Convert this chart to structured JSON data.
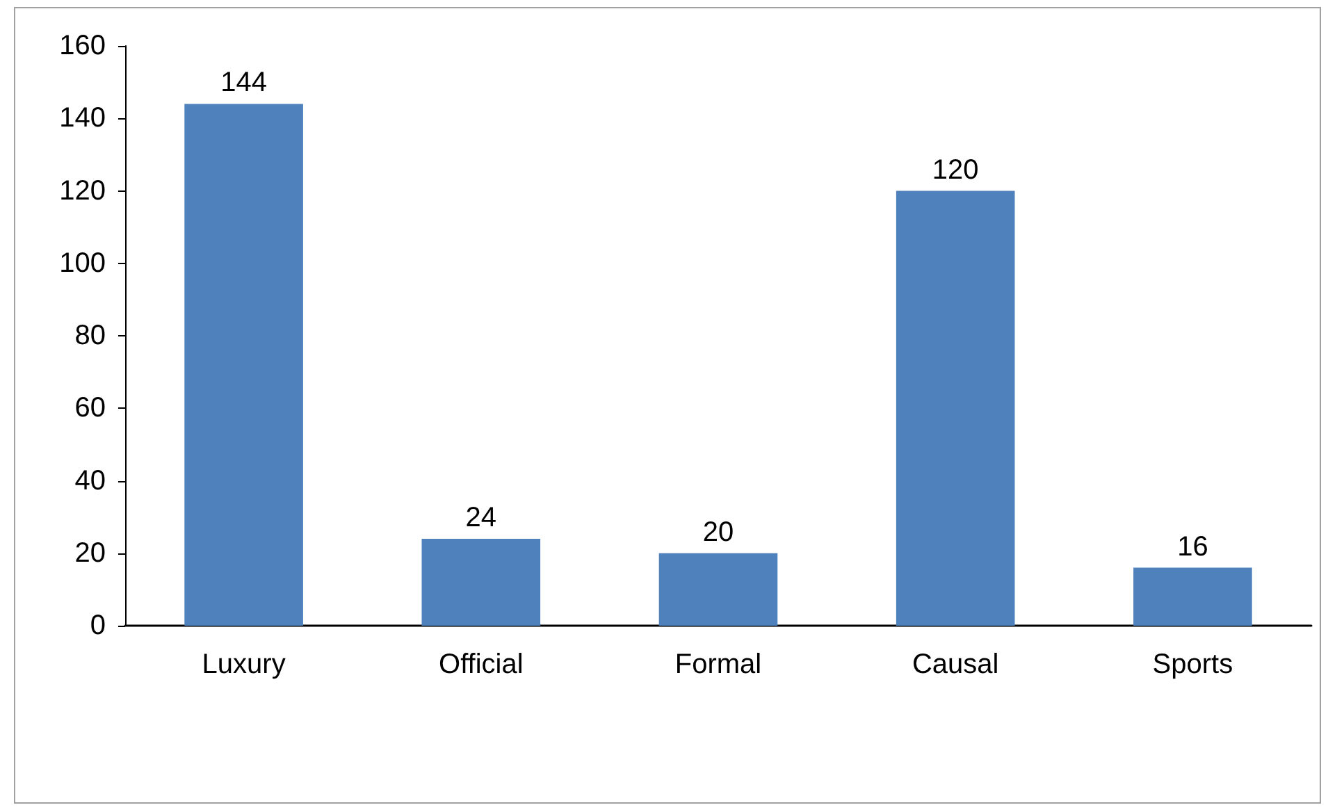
{
  "chart_data": {
    "type": "bar",
    "categories": [
      "Luxury",
      "Official",
      "Formal",
      "Causal",
      "Sports"
    ],
    "series": [
      {
        "color": "#4f81bd",
        "values": [
          144,
          24,
          20,
          120,
          16
        ]
      }
    ],
    "ylim": [
      0,
      160
    ],
    "yticks": [
      0,
      20,
      40,
      60,
      80,
      100,
      120,
      140,
      160
    ],
    "grid": false,
    "data_labels": true
  }
}
